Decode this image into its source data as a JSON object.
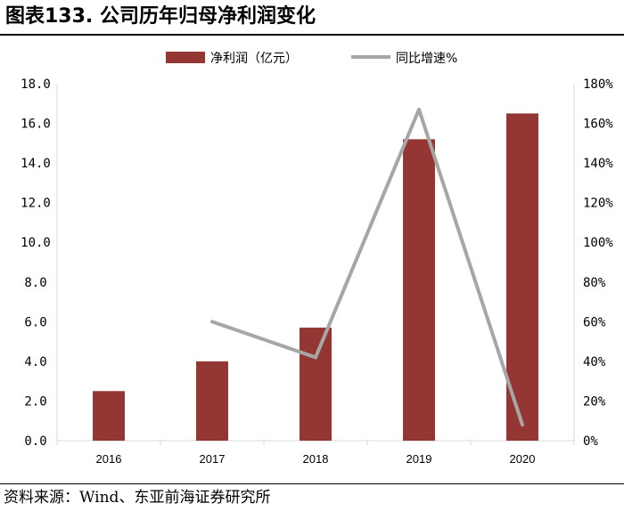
{
  "header": {
    "title": "图表133. 公司历年归母净利润变化"
  },
  "footer": {
    "source": "资料来源：Wind、东亚前海证券研究所"
  },
  "colors": {
    "bar": "#943634",
    "line": "#A6A6A6",
    "axis": "#D9D9D9"
  },
  "chart_data": {
    "type": "bar",
    "title": "图表133. 公司历年归母净利润变化",
    "categories": [
      "2016",
      "2017",
      "2018",
      "2019",
      "2020"
    ],
    "series": [
      {
        "name": "净利润（亿元）",
        "type": "bar",
        "axis": "left",
        "values": [
          2.5,
          4.0,
          5.7,
          15.2,
          16.5
        ]
      },
      {
        "name": "同比增速%",
        "type": "line",
        "axis": "right",
        "values": [
          null,
          60,
          42,
          167,
          8
        ]
      }
    ],
    "left_axis": {
      "range": [
        0,
        18
      ],
      "ticks": [
        "0.0",
        "2.0",
        "4.0",
        "6.0",
        "8.0",
        "10.0",
        "12.0",
        "14.0",
        "16.0",
        "18.0"
      ]
    },
    "right_axis": {
      "range": [
        0,
        180
      ],
      "ticks": [
        "0%",
        "20%",
        "40%",
        "60%",
        "80%",
        "100%",
        "120%",
        "140%",
        "160%",
        "180%"
      ]
    },
    "legend_position": "top-center"
  }
}
